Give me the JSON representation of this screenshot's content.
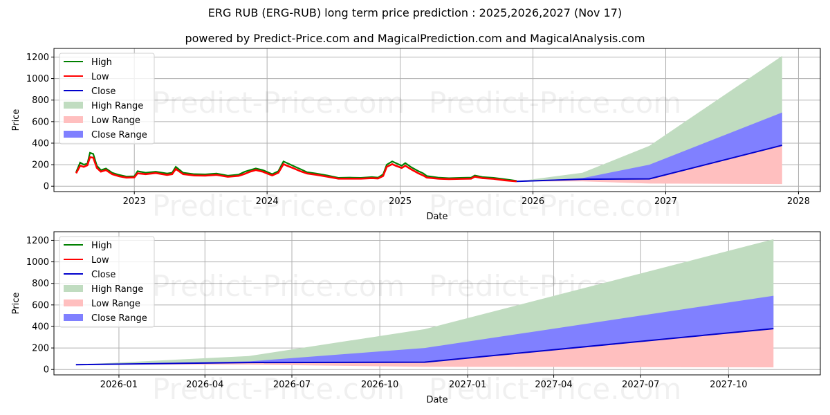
{
  "header": {
    "title": "ERG RUB (ERG-RUB) long term price prediction : 2025,2026,2027 (Nov 17)",
    "subtitle": "powered by Predict-Price.com and MagicalPrediction.com and MagicalAnalysis.com"
  },
  "watermark": "Predict-Price.com",
  "colors": {
    "high": "#008000",
    "low": "#ff0000",
    "close": "#0000cc",
    "high_range": "#c0dcc0",
    "low_range": "#ffbfbf",
    "close_range": "#8080ff",
    "grid": "#b0b0b0"
  },
  "legend": {
    "items": [
      {
        "label": "High",
        "kind": "line",
        "color": "#008000"
      },
      {
        "label": "Low",
        "kind": "line",
        "color": "#ff0000"
      },
      {
        "label": "Close",
        "kind": "line",
        "color": "#0000cc"
      },
      {
        "label": "High Range",
        "kind": "patch",
        "color": "#c0dcc0"
      },
      {
        "label": "Low Range",
        "kind": "patch",
        "color": "#ffbfbf"
      },
      {
        "label": "Close Range",
        "kind": "patch",
        "color": "#8080ff"
      }
    ]
  },
  "chart_data": [
    {
      "type": "line",
      "title": "Full history + forecast",
      "xlabel": "Date",
      "ylabel": "Price",
      "ylim": [
        -50,
        1280
      ],
      "yticks": [
        0,
        200,
        400,
        600,
        800,
        1000,
        1200
      ],
      "xticks": [
        "2023",
        "2024",
        "2025",
        "2026",
        "2027",
        "2028"
      ],
      "grid": true,
      "legend_position": "upper left",
      "history": {
        "x": [
          "2022-07-25",
          "2022-08-05",
          "2022-08-15",
          "2022-08-25",
          "2022-09-01",
          "2022-09-10",
          "2022-09-20",
          "2022-10-01",
          "2022-10-15",
          "2022-11-01",
          "2022-11-20",
          "2022-12-10",
          "2023-01-01",
          "2023-01-10",
          "2023-02-01",
          "2023-03-01",
          "2023-04-01",
          "2023-04-15",
          "2023-04-25",
          "2023-05-15",
          "2023-06-15",
          "2023-07-15",
          "2023-08-15",
          "2023-09-15",
          "2023-10-15",
          "2023-11-01",
          "2023-11-15",
          "2023-12-01",
          "2023-12-20",
          "2024-01-15",
          "2024-02-01",
          "2024-02-15",
          "2024-02-25",
          "2024-03-15",
          "2024-04-01",
          "2024-04-20",
          "2024-05-15",
          "2024-06-15",
          "2024-07-15",
          "2024-08-15",
          "2024-09-15",
          "2024-10-15",
          "2024-11-01",
          "2024-11-15",
          "2024-11-25",
          "2024-12-10",
          "2024-12-20",
          "2025-01-05",
          "2025-01-15",
          "2025-02-01",
          "2025-02-20",
          "2025-03-05",
          "2025-03-15",
          "2025-04-15",
          "2025-05-15",
          "2025-06-15",
          "2025-07-15",
          "2025-07-25",
          "2025-08-15",
          "2025-09-15",
          "2025-10-15",
          "2025-11-17"
        ],
        "high": [
          130,
          220,
          200,
          210,
          310,
          300,
          190,
          150,
          165,
          125,
          105,
          90,
          92,
          140,
          125,
          135,
          118,
          125,
          180,
          125,
          112,
          110,
          118,
          98,
          108,
          135,
          150,
          165,
          150,
          112,
          140,
          230,
          215,
          185,
          160,
          130,
          118,
          100,
          78,
          80,
          78,
          85,
          80,
          110,
          200,
          230,
          215,
          190,
          215,
          175,
          140,
          120,
          95,
          80,
          75,
          78,
          80,
          100,
          85,
          78,
          65,
          50
        ],
        "low": [
          120,
          190,
          180,
          195,
          270,
          265,
          170,
          135,
          150,
          112,
          92,
          80,
          82,
          120,
          112,
          122,
          105,
          112,
          160,
          112,
          100,
          98,
          105,
          88,
          96,
          115,
          135,
          150,
          135,
          100,
          125,
          205,
          190,
          165,
          140,
          118,
          106,
          88,
          70,
          70,
          70,
          75,
          72,
          95,
          180,
          205,
          190,
          170,
          190,
          155,
          120,
          100,
          80,
          70,
          66,
          68,
          70,
          88,
          75,
          68,
          55,
          45
        ]
      },
      "forecast": {
        "x": [
          "2025-11-17",
          "2026-05-17",
          "2026-11-17",
          "2027-11-17"
        ],
        "close": [
          45,
          65,
          68,
          380
        ],
        "high_range_top": [
          45,
          125,
          375,
          1210
        ],
        "close_range_top": [
          45,
          75,
          200,
          685
        ],
        "close_range_bottom": [
          45,
          55,
          50,
          380
        ],
        "low_range_bottom": [
          45,
          45,
          25,
          20
        ]
      }
    },
    {
      "type": "line",
      "title": "Forecast detail",
      "xlabel": "Date",
      "ylabel": "Price",
      "ylim": [
        -50,
        1280
      ],
      "yticks": [
        0,
        200,
        400,
        600,
        800,
        1000,
        1200
      ],
      "xticks": [
        "2026-01",
        "2026-04",
        "2026-07",
        "2026-10",
        "2027-01",
        "2027-04",
        "2027-07",
        "2027-10"
      ],
      "grid": true,
      "legend_position": "upper left",
      "forecast": {
        "x": [
          "2025-11-17",
          "2026-05-17",
          "2026-11-17",
          "2027-11-17"
        ],
        "close": [
          45,
          65,
          68,
          380
        ],
        "high_range_top": [
          45,
          125,
          375,
          1210
        ],
        "close_range_top": [
          45,
          75,
          200,
          685
        ],
        "close_range_bottom": [
          45,
          55,
          50,
          380
        ],
        "low_range_bottom": [
          45,
          45,
          25,
          20
        ]
      }
    }
  ]
}
